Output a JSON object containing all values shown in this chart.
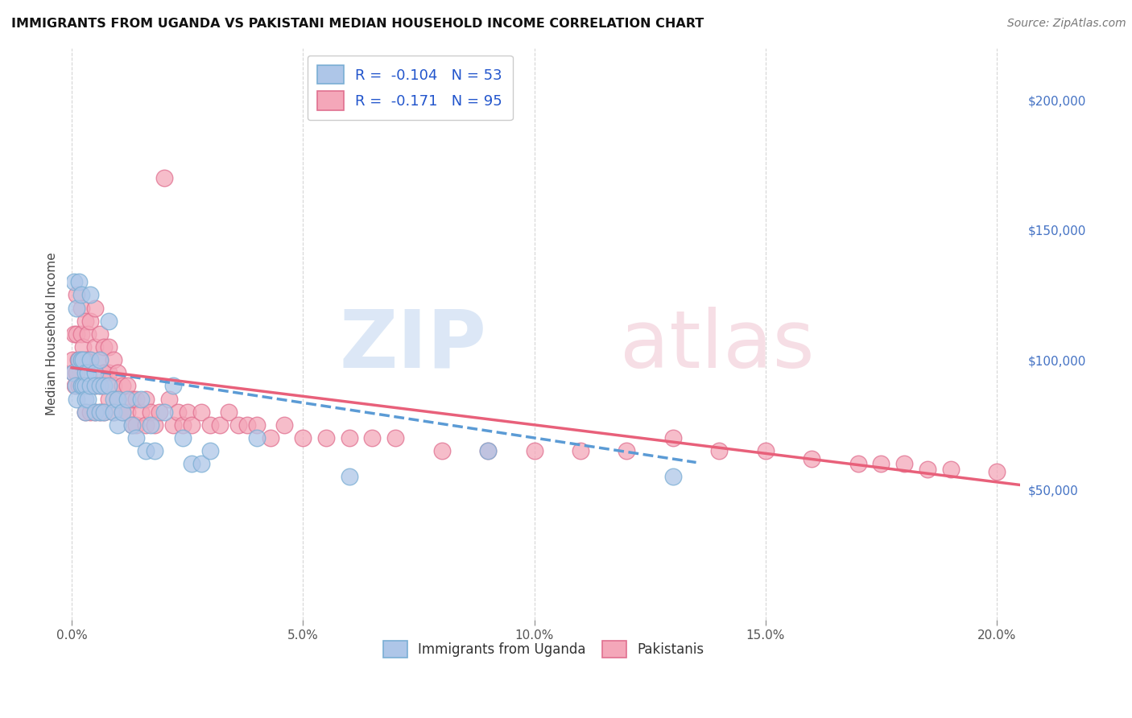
{
  "title": "IMMIGRANTS FROM UGANDA VS PAKISTANI MEDIAN HOUSEHOLD INCOME CORRELATION CHART",
  "source": "Source: ZipAtlas.com",
  "xlabel_ticks": [
    "0.0%",
    "5.0%",
    "10.0%",
    "15.0%",
    "20.0%"
  ],
  "xlabel_tick_vals": [
    0.0,
    0.05,
    0.1,
    0.15,
    0.2
  ],
  "ylabel": "Median Household Income",
  "ylabel_right_ticks": [
    "$50,000",
    "$100,000",
    "$150,000",
    "$200,000"
  ],
  "ylabel_right_vals": [
    50000,
    100000,
    150000,
    200000
  ],
  "ylim": [
    0,
    220000
  ],
  "xlim": [
    -0.001,
    0.205
  ],
  "background_color": "#ffffff",
  "grid_color": "#cccccc",
  "uganda_color": "#aec6e8",
  "uganda_edge": "#7aaed4",
  "pakistan_color": "#f4a7b9",
  "pakistan_edge": "#e07090",
  "trend_uganda_color": "#5b9bd5",
  "trend_pakistan_color": "#e8607a",
  "uganda_R": -0.104,
  "uganda_N": 53,
  "pakistan_R": -0.171,
  "pakistan_N": 95,
  "uganda_trend_intercept": 97000,
  "uganda_trend_slope": -270000,
  "pakistan_trend_intercept": 97000,
  "pakistan_trend_slope": -220000,
  "uganda_x": [
    0.0003,
    0.0005,
    0.0008,
    0.001,
    0.001,
    0.0015,
    0.0015,
    0.002,
    0.002,
    0.002,
    0.0025,
    0.0025,
    0.003,
    0.003,
    0.003,
    0.003,
    0.0035,
    0.0035,
    0.004,
    0.004,
    0.004,
    0.005,
    0.005,
    0.005,
    0.006,
    0.006,
    0.006,
    0.007,
    0.007,
    0.008,
    0.008,
    0.009,
    0.009,
    0.01,
    0.01,
    0.011,
    0.012,
    0.013,
    0.014,
    0.015,
    0.016,
    0.017,
    0.018,
    0.02,
    0.022,
    0.024,
    0.026,
    0.028,
    0.03,
    0.04,
    0.06,
    0.09,
    0.13
  ],
  "uganda_y": [
    95000,
    130000,
    90000,
    120000,
    85000,
    130000,
    100000,
    125000,
    100000,
    90000,
    100000,
    90000,
    95000,
    90000,
    85000,
    80000,
    95000,
    85000,
    125000,
    100000,
    90000,
    95000,
    90000,
    80000,
    100000,
    90000,
    80000,
    90000,
    80000,
    115000,
    90000,
    85000,
    80000,
    85000,
    75000,
    80000,
    85000,
    75000,
    70000,
    85000,
    65000,
    75000,
    65000,
    80000,
    90000,
    70000,
    60000,
    60000,
    65000,
    70000,
    55000,
    65000,
    55000
  ],
  "pakistan_x": [
    0.0002,
    0.0003,
    0.0005,
    0.0007,
    0.001,
    0.001,
    0.001,
    0.0013,
    0.0015,
    0.002,
    0.002,
    0.002,
    0.002,
    0.0025,
    0.0025,
    0.003,
    0.003,
    0.003,
    0.003,
    0.0035,
    0.0035,
    0.0035,
    0.004,
    0.004,
    0.004,
    0.004,
    0.005,
    0.005,
    0.005,
    0.005,
    0.006,
    0.006,
    0.006,
    0.006,
    0.007,
    0.007,
    0.007,
    0.008,
    0.008,
    0.008,
    0.009,
    0.009,
    0.009,
    0.01,
    0.01,
    0.011,
    0.011,
    0.012,
    0.012,
    0.013,
    0.013,
    0.014,
    0.014,
    0.015,
    0.016,
    0.016,
    0.017,
    0.018,
    0.019,
    0.02,
    0.021,
    0.022,
    0.023,
    0.024,
    0.025,
    0.026,
    0.028,
    0.03,
    0.032,
    0.034,
    0.036,
    0.038,
    0.04,
    0.043,
    0.046,
    0.05,
    0.055,
    0.06,
    0.065,
    0.07,
    0.08,
    0.09,
    0.1,
    0.11,
    0.12,
    0.13,
    0.14,
    0.15,
    0.16,
    0.17,
    0.175,
    0.18,
    0.185,
    0.19,
    0.2
  ],
  "pakistan_y": [
    100000,
    95000,
    110000,
    90000,
    125000,
    110000,
    95000,
    100000,
    90000,
    120000,
    110000,
    100000,
    90000,
    105000,
    90000,
    115000,
    100000,
    90000,
    80000,
    110000,
    100000,
    90000,
    115000,
    100000,
    90000,
    80000,
    120000,
    105000,
    90000,
    80000,
    110000,
    100000,
    90000,
    80000,
    105000,
    95000,
    80000,
    105000,
    95000,
    85000,
    100000,
    90000,
    80000,
    95000,
    85000,
    90000,
    80000,
    90000,
    80000,
    85000,
    75000,
    85000,
    75000,
    80000,
    85000,
    75000,
    80000,
    75000,
    80000,
    170000,
    85000,
    75000,
    80000,
    75000,
    80000,
    75000,
    80000,
    75000,
    75000,
    80000,
    75000,
    75000,
    75000,
    70000,
    75000,
    70000,
    70000,
    70000,
    70000,
    70000,
    65000,
    65000,
    65000,
    65000,
    65000,
    70000,
    65000,
    65000,
    62000,
    60000,
    60000,
    60000,
    58000,
    58000,
    57000
  ]
}
